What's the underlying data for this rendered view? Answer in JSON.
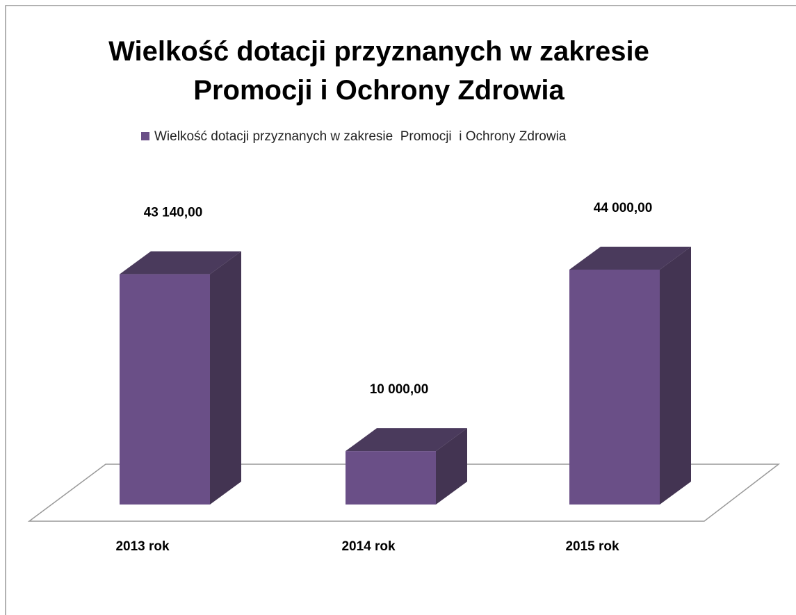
{
  "chart_data": {
    "type": "bar3d",
    "title": "Wielkość dotacji przyznanych w zakresie\nPromocji  i Ochrony Zdrowia",
    "categories": [
      "2013 rok",
      "2014 rok",
      "2015 rok"
    ],
    "series": [
      {
        "name": "Wielkość dotacji przyznanych w zakresie  Promocji  i Ochrony Zdrowia",
        "color": "#6a4f87",
        "values": [
          43140,
          10000,
          44000
        ],
        "value_labels": [
          "43 140,00",
          "10 000,00",
          "44 000,00"
        ]
      }
    ],
    "legend": "top"
  }
}
